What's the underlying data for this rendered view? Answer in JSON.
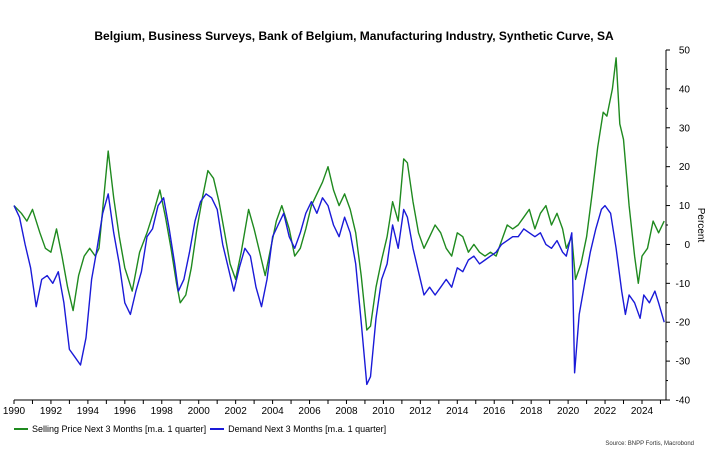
{
  "chart_data": {
    "type": "line",
    "title": "Belgium, Business Surveys, Bank of Belgium, Manufacturing Industry, Synthetic Curve, SA",
    "ylabel": "Percent",
    "xlim": [
      1990,
      2025.3
    ],
    "ylim": [
      -40,
      50
    ],
    "x_ticks": [
      1990,
      1992,
      1994,
      1996,
      1998,
      2000,
      2002,
      2004,
      2006,
      2008,
      2010,
      2012,
      2014,
      2016,
      2018,
      2020,
      2022,
      2024
    ],
    "y_ticks": [
      -40,
      -30,
      -20,
      -10,
      0,
      10,
      20,
      30,
      40,
      50
    ],
    "series": [
      {
        "name": "Selling Price Next 3 Months [m.a. 1 quarter]",
        "color": "#1f8a1f",
        "points": [
          [
            1990.0,
            10
          ],
          [
            1990.4,
            8
          ],
          [
            1990.7,
            6
          ],
          [
            1991.0,
            9
          ],
          [
            1991.4,
            3
          ],
          [
            1991.7,
            -1
          ],
          [
            1992.0,
            -2
          ],
          [
            1992.3,
            4
          ],
          [
            1992.6,
            -3
          ],
          [
            1992.9,
            -11
          ],
          [
            1993.2,
            -17
          ],
          [
            1993.5,
            -8
          ],
          [
            1993.8,
            -3
          ],
          [
            1994.1,
            -1
          ],
          [
            1994.4,
            -3
          ],
          [
            1994.6,
            -1
          ],
          [
            1994.9,
            14
          ],
          [
            1995.1,
            24
          ],
          [
            1995.4,
            12
          ],
          [
            1995.7,
            2
          ],
          [
            1996.0,
            -6
          ],
          [
            1996.4,
            -12
          ],
          [
            1996.8,
            -2
          ],
          [
            1997.2,
            3
          ],
          [
            1997.6,
            9
          ],
          [
            1997.9,
            14
          ],
          [
            1998.2,
            7
          ],
          [
            1998.5,
            -1
          ],
          [
            1998.8,
            -10
          ],
          [
            1999.0,
            -15
          ],
          [
            1999.3,
            -13
          ],
          [
            1999.6,
            -6
          ],
          [
            1999.9,
            4
          ],
          [
            2000.2,
            12
          ],
          [
            2000.5,
            19
          ],
          [
            2000.8,
            17
          ],
          [
            2001.1,
            11
          ],
          [
            2001.4,
            3
          ],
          [
            2001.7,
            -5
          ],
          [
            2002.0,
            -9
          ],
          [
            2002.3,
            -2
          ],
          [
            2002.7,
            9
          ],
          [
            2003.0,
            4
          ],
          [
            2003.3,
            -2
          ],
          [
            2003.6,
            -8
          ],
          [
            2003.9,
            -1
          ],
          [
            2004.2,
            6
          ],
          [
            2004.5,
            10
          ],
          [
            2004.9,
            4
          ],
          [
            2005.2,
            -3
          ],
          [
            2005.5,
            -1
          ],
          [
            2005.8,
            4
          ],
          [
            2006.1,
            10
          ],
          [
            2006.4,
            13
          ],
          [
            2006.7,
            16
          ],
          [
            2007.0,
            20
          ],
          [
            2007.3,
            14
          ],
          [
            2007.6,
            10
          ],
          [
            2007.9,
            13
          ],
          [
            2008.2,
            9
          ],
          [
            2008.5,
            3
          ],
          [
            2008.8,
            -8
          ],
          [
            2009.1,
            -22
          ],
          [
            2009.3,
            -21
          ],
          [
            2009.6,
            -11
          ],
          [
            2009.9,
            -4
          ],
          [
            2010.2,
            2
          ],
          [
            2010.5,
            11
          ],
          [
            2010.8,
            6
          ],
          [
            2011.1,
            22
          ],
          [
            2011.3,
            21
          ],
          [
            2011.6,
            11
          ],
          [
            2011.9,
            3
          ],
          [
            2012.2,
            -1
          ],
          [
            2012.5,
            2
          ],
          [
            2012.8,
            5
          ],
          [
            2013.1,
            3
          ],
          [
            2013.4,
            -1
          ],
          [
            2013.7,
            -3
          ],
          [
            2014.0,
            3
          ],
          [
            2014.3,
            2
          ],
          [
            2014.6,
            -2
          ],
          [
            2014.9,
            0
          ],
          [
            2015.2,
            -2
          ],
          [
            2015.5,
            -3
          ],
          [
            2015.8,
            -2
          ],
          [
            2016.1,
            -3
          ],
          [
            2016.4,
            1
          ],
          [
            2016.7,
            5
          ],
          [
            2017.0,
            4
          ],
          [
            2017.3,
            5
          ],
          [
            2017.6,
            7
          ],
          [
            2017.9,
            9
          ],
          [
            2018.2,
            4
          ],
          [
            2018.5,
            8
          ],
          [
            2018.8,
            10
          ],
          [
            2019.1,
            5
          ],
          [
            2019.4,
            8
          ],
          [
            2019.7,
            4
          ],
          [
            2019.9,
            -1
          ],
          [
            2020.2,
            2
          ],
          [
            2020.4,
            -9
          ],
          [
            2020.7,
            -5
          ],
          [
            2021.0,
            2
          ],
          [
            2021.3,
            13
          ],
          [
            2021.6,
            25
          ],
          [
            2021.9,
            34
          ],
          [
            2022.1,
            33
          ],
          [
            2022.4,
            40
          ],
          [
            2022.6,
            48
          ],
          [
            2022.8,
            31
          ],
          [
            2023.0,
            27
          ],
          [
            2023.3,
            10
          ],
          [
            2023.6,
            -3
          ],
          [
            2023.8,
            -10
          ],
          [
            2024.0,
            -3
          ],
          [
            2024.3,
            -1
          ],
          [
            2024.6,
            6
          ],
          [
            2024.9,
            3
          ],
          [
            2025.2,
            6
          ]
        ]
      },
      {
        "name": "Demand Next 3 Months [m.a. 1 quarter]",
        "color": "#1a1ad8",
        "points": [
          [
            1990.0,
            10
          ],
          [
            1990.3,
            7
          ],
          [
            1990.6,
            0
          ],
          [
            1990.9,
            -6
          ],
          [
            1991.2,
            -16
          ],
          [
            1991.5,
            -9
          ],
          [
            1991.8,
            -8
          ],
          [
            1992.1,
            -10
          ],
          [
            1992.4,
            -7
          ],
          [
            1992.7,
            -15
          ],
          [
            1993.0,
            -27
          ],
          [
            1993.3,
            -29
          ],
          [
            1993.6,
            -31
          ],
          [
            1993.9,
            -24
          ],
          [
            1994.2,
            -9
          ],
          [
            1994.5,
            -1
          ],
          [
            1994.8,
            8
          ],
          [
            1995.1,
            13
          ],
          [
            1995.4,
            3
          ],
          [
            1995.7,
            -5
          ],
          [
            1996.0,
            -15
          ],
          [
            1996.3,
            -18
          ],
          [
            1996.6,
            -12
          ],
          [
            1996.9,
            -7
          ],
          [
            1997.2,
            2
          ],
          [
            1997.5,
            4
          ],
          [
            1997.8,
            10
          ],
          [
            1998.1,
            12
          ],
          [
            1998.4,
            4
          ],
          [
            1998.7,
            -5
          ],
          [
            1998.9,
            -12
          ],
          [
            1999.2,
            -9
          ],
          [
            1999.5,
            -2
          ],
          [
            1999.8,
            6
          ],
          [
            2000.1,
            11
          ],
          [
            2000.4,
            13
          ],
          [
            2000.7,
            12
          ],
          [
            2001.0,
            9
          ],
          [
            2001.3,
            0
          ],
          [
            2001.6,
            -6
          ],
          [
            2001.9,
            -12
          ],
          [
            2002.2,
            -6
          ],
          [
            2002.5,
            -1
          ],
          [
            2002.8,
            -3
          ],
          [
            2003.1,
            -11
          ],
          [
            2003.4,
            -16
          ],
          [
            2003.7,
            -9
          ],
          [
            2004.0,
            2
          ],
          [
            2004.3,
            5
          ],
          [
            2004.6,
            8
          ],
          [
            2004.9,
            2
          ],
          [
            2005.2,
            -1
          ],
          [
            2005.5,
            3
          ],
          [
            2005.8,
            8
          ],
          [
            2006.1,
            11
          ],
          [
            2006.4,
            8
          ],
          [
            2006.7,
            12
          ],
          [
            2007.0,
            10
          ],
          [
            2007.3,
            5
          ],
          [
            2007.6,
            2
          ],
          [
            2007.9,
            7
          ],
          [
            2008.2,
            3
          ],
          [
            2008.5,
            -5
          ],
          [
            2008.8,
            -20
          ],
          [
            2009.1,
            -36
          ],
          [
            2009.3,
            -34
          ],
          [
            2009.6,
            -19
          ],
          [
            2009.9,
            -9
          ],
          [
            2010.2,
            -5
          ],
          [
            2010.5,
            5
          ],
          [
            2010.8,
            -1
          ],
          [
            2011.1,
            9
          ],
          [
            2011.3,
            7
          ],
          [
            2011.6,
            -1
          ],
          [
            2011.9,
            -7
          ],
          [
            2012.2,
            -13
          ],
          [
            2012.5,
            -11
          ],
          [
            2012.8,
            -13
          ],
          [
            2013.1,
            -11
          ],
          [
            2013.4,
            -9
          ],
          [
            2013.7,
            -11
          ],
          [
            2014.0,
            -6
          ],
          [
            2014.3,
            -7
          ],
          [
            2014.6,
            -4
          ],
          [
            2014.9,
            -3
          ],
          [
            2015.2,
            -5
          ],
          [
            2015.5,
            -4
          ],
          [
            2015.8,
            -3
          ],
          [
            2016.1,
            -2
          ],
          [
            2016.4,
            0
          ],
          [
            2016.7,
            1
          ],
          [
            2017.0,
            2
          ],
          [
            2017.3,
            2
          ],
          [
            2017.6,
            4
          ],
          [
            2017.9,
            3
          ],
          [
            2018.2,
            2
          ],
          [
            2018.5,
            3
          ],
          [
            2018.8,
            0
          ],
          [
            2019.1,
            -1
          ],
          [
            2019.4,
            1
          ],
          [
            2019.7,
            -2
          ],
          [
            2019.9,
            -3
          ],
          [
            2020.2,
            3
          ],
          [
            2020.35,
            -33
          ],
          [
            2020.6,
            -18
          ],
          [
            2020.9,
            -10
          ],
          [
            2021.2,
            -2
          ],
          [
            2021.5,
            4
          ],
          [
            2021.8,
            9
          ],
          [
            2022.0,
            10
          ],
          [
            2022.3,
            8
          ],
          [
            2022.6,
            -1
          ],
          [
            2022.9,
            -12
          ],
          [
            2023.1,
            -18
          ],
          [
            2023.3,
            -13
          ],
          [
            2023.6,
            -15
          ],
          [
            2023.9,
            -19
          ],
          [
            2024.1,
            -13
          ],
          [
            2024.4,
            -15
          ],
          [
            2024.7,
            -12
          ],
          [
            2024.9,
            -15
          ],
          [
            2025.2,
            -20
          ]
        ]
      }
    ],
    "source": "Source: BNPP Fortis, Macrobond"
  }
}
